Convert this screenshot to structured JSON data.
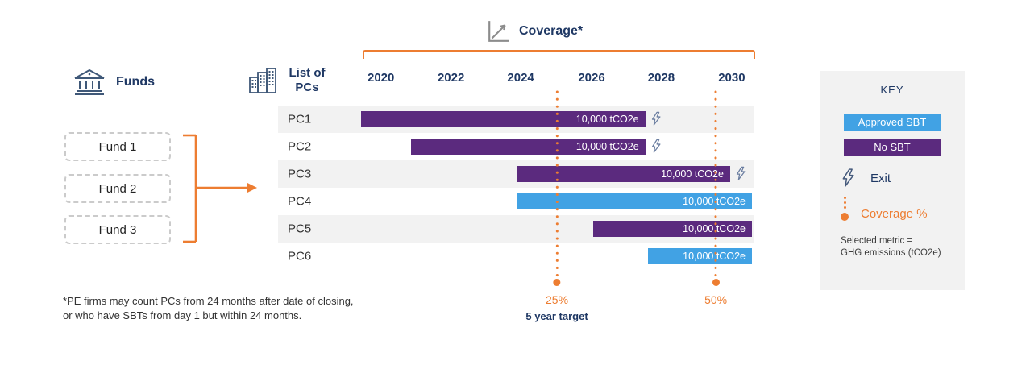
{
  "title": {
    "coverage": "Coverage*"
  },
  "funds_section": {
    "heading": "Funds",
    "items": [
      {
        "label": "Fund 1"
      },
      {
        "label": "Fund 2"
      },
      {
        "label": "Fund 3"
      }
    ]
  },
  "pcs_section": {
    "heading": "List of PCs"
  },
  "chart_data": {
    "type": "gantt",
    "title": "Coverage*",
    "years": [
      {
        "label": "2020",
        "f": 0.047
      },
      {
        "label": "2022",
        "f": 0.227
      },
      {
        "label": "2024",
        "f": 0.406
      },
      {
        "label": "2026",
        "f": 0.588
      },
      {
        "label": "2028",
        "f": 0.767
      },
      {
        "label": "2030",
        "f": 0.948
      }
    ],
    "rows": [
      {
        "label": "PC1",
        "category": "No SBT",
        "value": "10,000 tCO2e",
        "exit": true,
        "start_f": -0.004,
        "end_f": 0.726
      },
      {
        "label": "PC2",
        "category": "No SBT",
        "value": "10,000 tCO2e",
        "exit": true,
        "start_f": 0.124,
        "end_f": 0.726
      },
      {
        "label": "PC3",
        "category": "No SBT",
        "value": "10,000 tCO2e",
        "exit": true,
        "start_f": 0.398,
        "end_f": 0.944
      },
      {
        "label": "PC4",
        "category": "Approved SBT",
        "value": "10,000 tCO2e",
        "exit": false,
        "start_f": 0.398,
        "end_f": 1.0
      },
      {
        "label": "PC5",
        "category": "No SBT",
        "value": "10,000 tCO2e",
        "exit": false,
        "start_f": 0.592,
        "end_f": 1.0
      },
      {
        "label": "PC6",
        "category": "Approved SBT",
        "value": "10,000 tCO2e",
        "exit": false,
        "start_f": 0.732,
        "end_f": 1.0
      }
    ],
    "markers": [
      {
        "pct": "25%",
        "sub": "5 year target",
        "f": 0.499
      },
      {
        "pct": "50%",
        "sub": "",
        "f": 0.907
      }
    ]
  },
  "key": {
    "title": "KEY",
    "approved_label": "Approved SBT",
    "no_sbt_label": "No SBT",
    "exit_label": "Exit",
    "coverage_label": "Coverage %",
    "metric_line1": "Selected metric =",
    "metric_line2": "GHG emissions (tCO2e)"
  },
  "footnote": {
    "line1": "*PE firms may count PCs from 24 months after date of closing,",
    "line2": "or who have SBTs from day 1 but within 24 months."
  },
  "colors": {
    "approved_sbt": "#41A2E4",
    "no_sbt": "#5B2A7E",
    "accent_orange": "#ED7D31",
    "navy": "#1F3864",
    "row_alt": "#F2F2F2"
  }
}
